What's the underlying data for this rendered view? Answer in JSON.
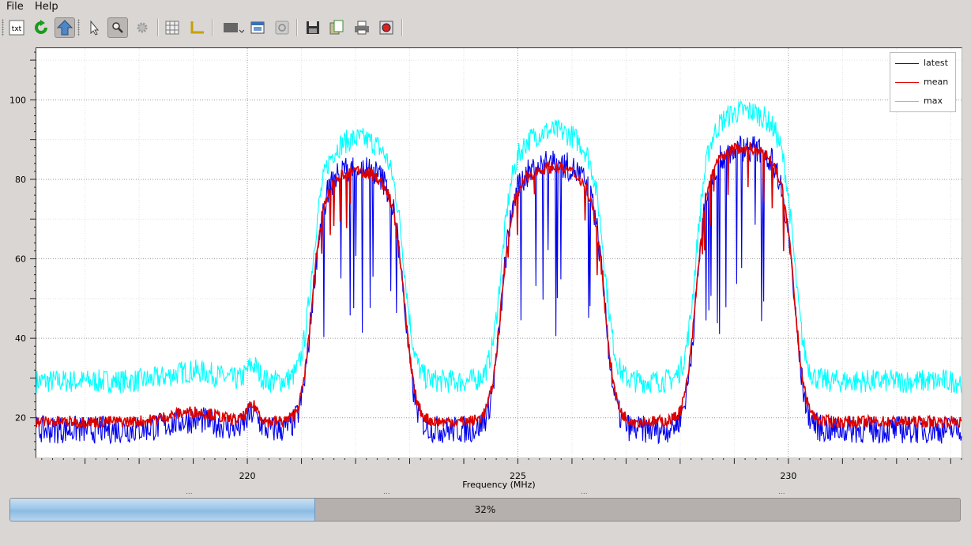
{
  "menu": {
    "items": [
      "File",
      "Help"
    ]
  },
  "toolbar": {
    "buttons": [
      {
        "icon": "text-file-icon",
        "label": "txt"
      },
      {
        "icon": "refresh-icon"
      },
      {
        "icon": "up-arrow-icon",
        "pressed": true
      },
      {
        "icon": "pointer-icon"
      },
      {
        "icon": "zoom-icon",
        "pressed": true
      },
      {
        "icon": "settings-gear-icon"
      },
      {
        "icon": "grid-icon"
      },
      {
        "icon": "axis-icon"
      },
      {
        "icon": "display-dropdown-icon"
      },
      {
        "icon": "window-icon"
      },
      {
        "icon": "info-icon"
      },
      {
        "icon": "save-icon"
      },
      {
        "icon": "copy-icon"
      },
      {
        "icon": "print-icon"
      },
      {
        "icon": "capture-icon"
      }
    ]
  },
  "chart_data": {
    "type": "line",
    "xlabel": "Frequency (MHz)",
    "ylabel": "",
    "xlim": [
      216.1,
      233.2
    ],
    "ylim": [
      10,
      113
    ],
    "x_ticks": [
      220,
      225,
      230
    ],
    "y_ticks": [
      20,
      40,
      60,
      80,
      100
    ],
    "grid": true,
    "legend_position": "top-right",
    "channels": [
      {
        "start": 221.0,
        "end": 223.1,
        "peak": 83
      },
      {
        "start": 224.5,
        "end": 226.8,
        "peak": 85
      },
      {
        "start": 228.1,
        "end": 230.3,
        "peak": 89
      }
    ],
    "series": [
      {
        "name": "latest",
        "color": "#0000ee",
        "noise_floor": 17,
        "band_peaks": [
          83,
          84,
          88
        ]
      },
      {
        "name": "mean",
        "color": "#dd0000",
        "noise_floor": 19,
        "band_peaks": [
          82,
          83,
          88
        ]
      },
      {
        "name": "max",
        "color": "#00ffff",
        "noise_floor": 28,
        "band_peaks": [
          89,
          91,
          96
        ]
      }
    ]
  },
  "progress": {
    "value": 0.32,
    "label": "32%"
  }
}
